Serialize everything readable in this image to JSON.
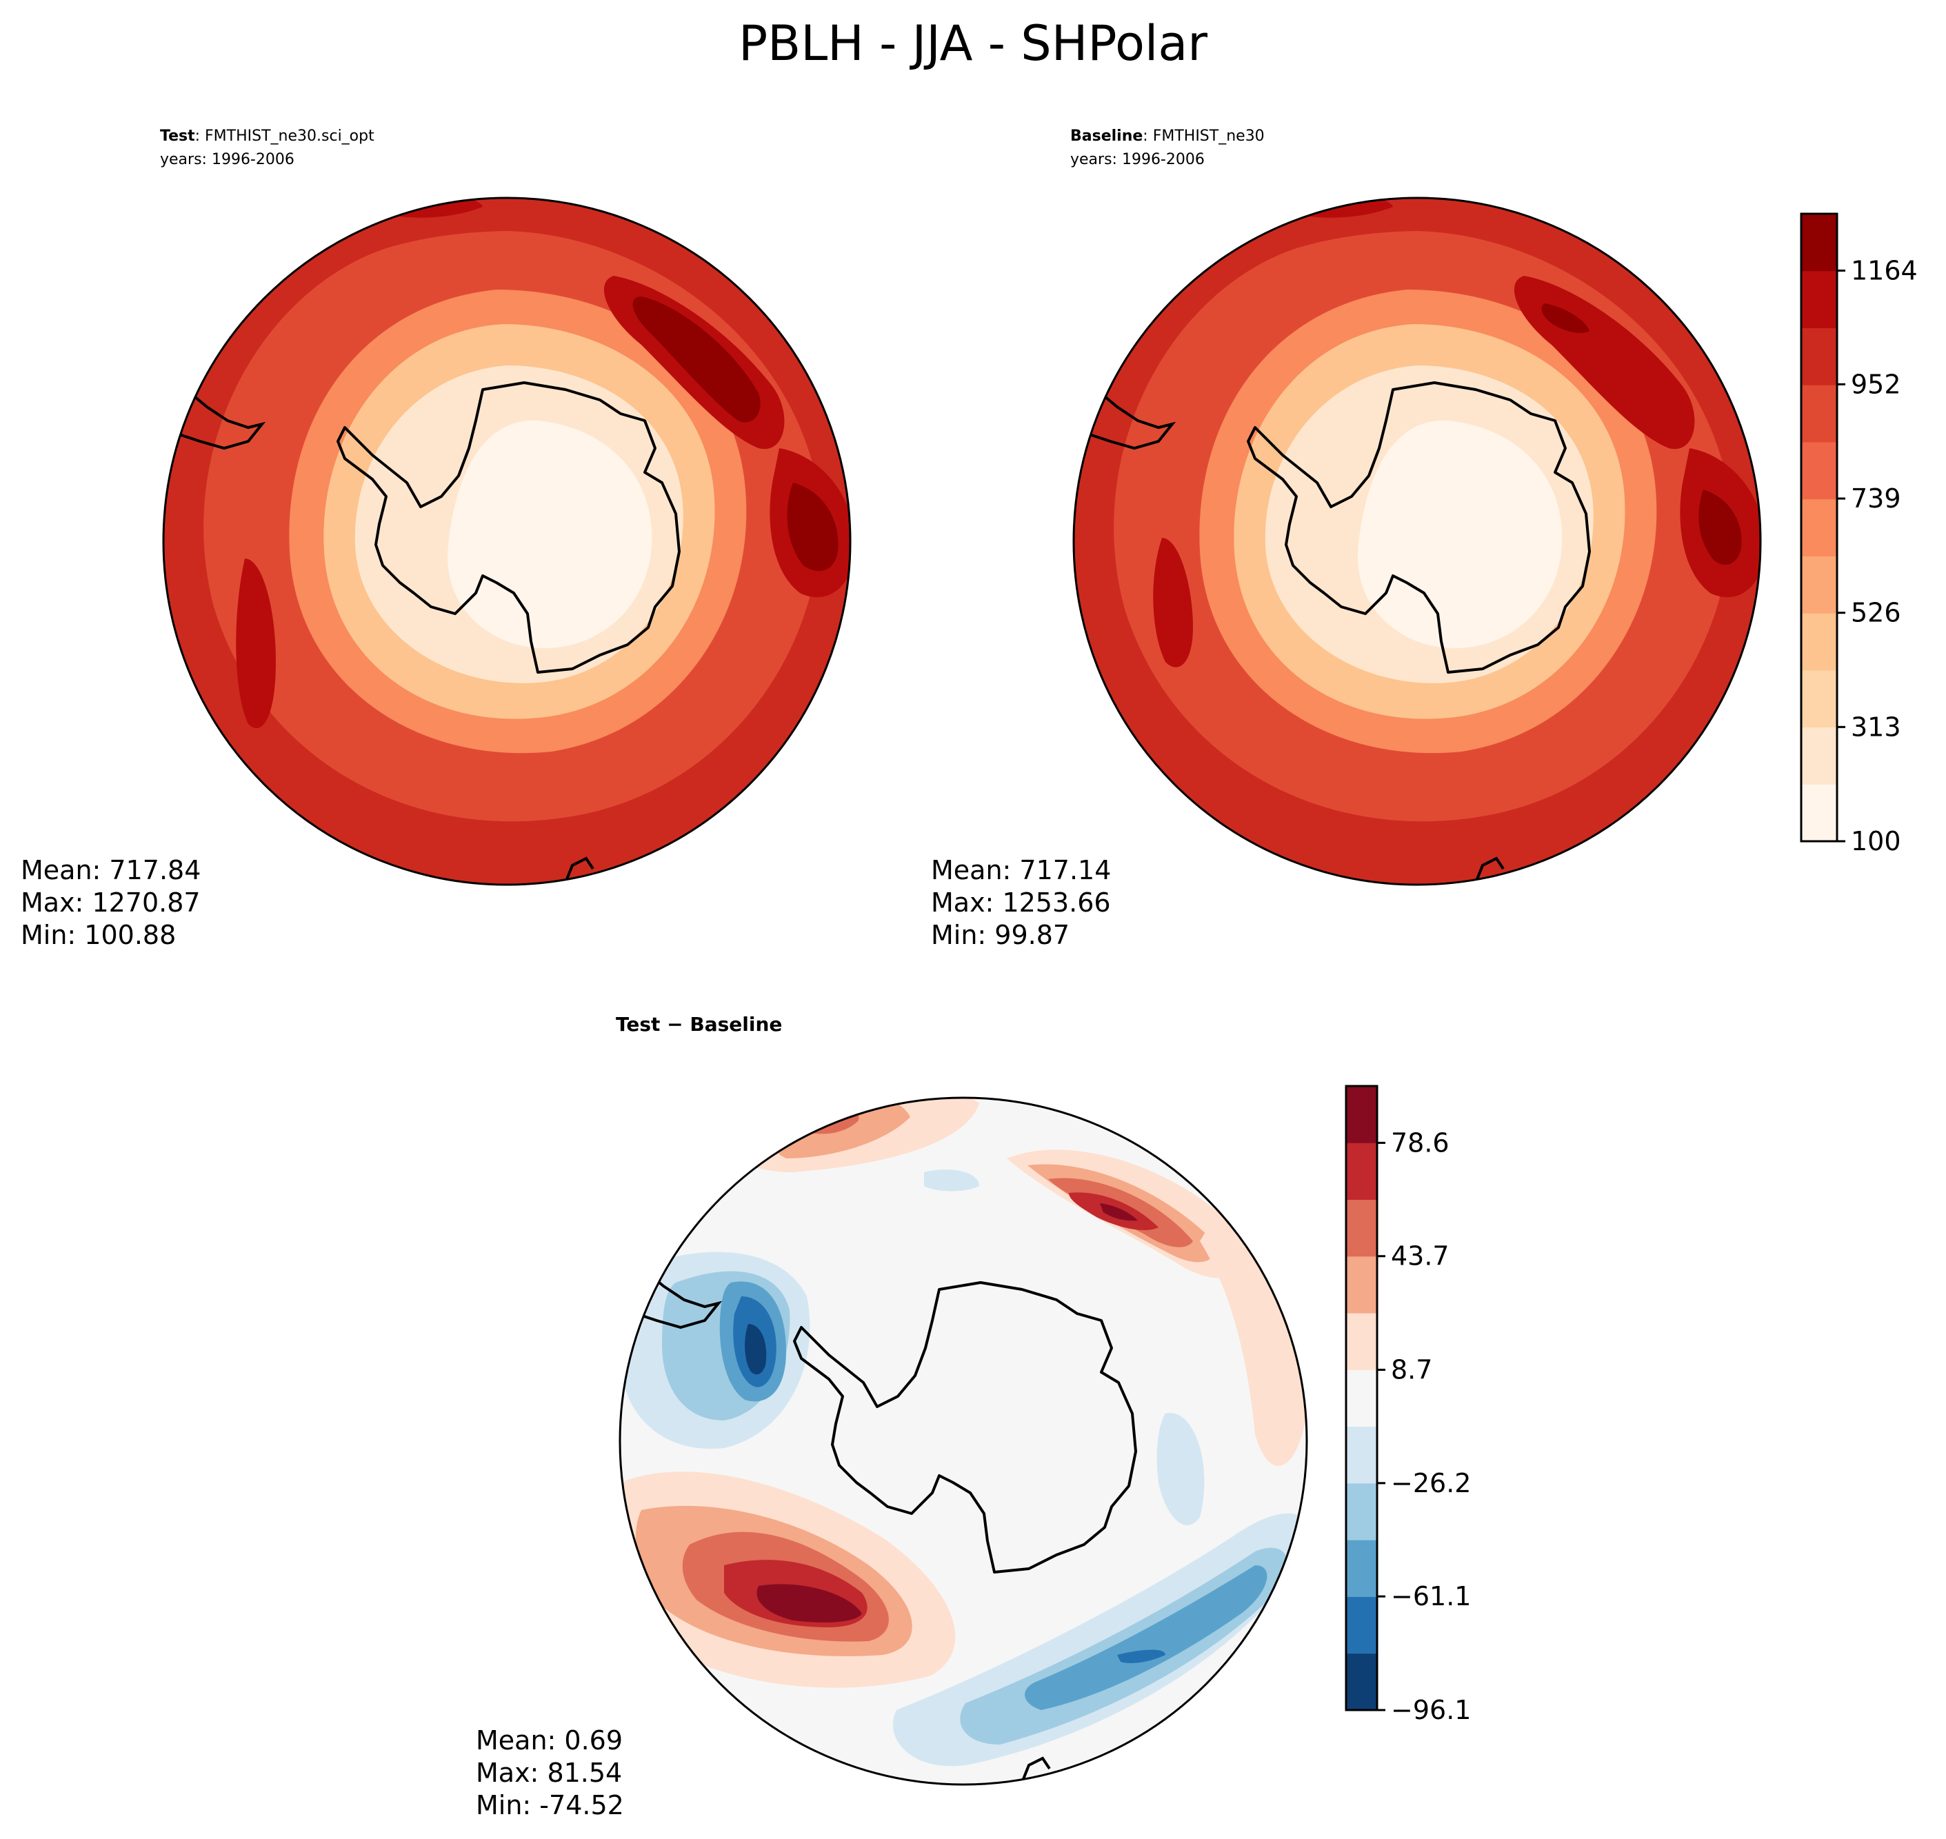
{
  "figure": {
    "title": "PBLH - JJA - SHPolar"
  },
  "chart_data": [
    {
      "type": "heatmap",
      "projection": "south-polar-stereographic",
      "panel": "test",
      "header_bold": "Test",
      "header_rest": ": FMTHIST_ne30.sci_opt",
      "years": "years: 1996-2006",
      "stats": {
        "mean": "Mean: 717.84",
        "max": "Max: 1270.87",
        "min": "Min: 100.88"
      },
      "field": "PBLH",
      "pattern": "low values (100-400) over Antarctic interior, increasing outward to 900-1270 over the Southern Ocean; maxima near 1270 in the upper-right sector"
    },
    {
      "type": "heatmap",
      "projection": "south-polar-stereographic",
      "panel": "baseline",
      "header_bold": "Baseline",
      "header_rest": ": FMTHIST_ne30",
      "years": "years: 1996-2006",
      "stats": {
        "mean": "Mean: 717.14",
        "max": "Max: 1253.66",
        "min": "Min: 99.87"
      },
      "field": "PBLH",
      "colorbar": {
        "colormap": "Reds",
        "ticks": [
          "1164",
          "952",
          "739",
          "526",
          "313",
          "100"
        ],
        "tick_values": [
          1164,
          952,
          739,
          526,
          313,
          100
        ],
        "range": [
          100,
          1270
        ],
        "levels": 11,
        "colors": [
          "#fff5eb",
          "#fee6ce",
          "#fdd5a8",
          "#fdc48f",
          "#fca876",
          "#f98b5c",
          "#ef6548",
          "#e04a33",
          "#cc2a1f",
          "#b80c0c",
          "#8f0000"
        ]
      }
    },
    {
      "type": "heatmap",
      "projection": "south-polar-stereographic",
      "panel": "difference",
      "header_bold": "Test − Baseline",
      "stats": {
        "mean": "Mean:  0.69",
        "max": "Max: 81.54",
        "min": "Min: -74.52"
      },
      "field": "PBLH difference",
      "colorbar": {
        "colormap": "RdBu_r",
        "ticks": [
          "78.6",
          "43.7",
          "8.7",
          "−26.2",
          "−61.1",
          "−96.1"
        ],
        "tick_values": [
          78.6,
          43.7,
          8.7,
          -26.2,
          -61.1,
          -96.1
        ],
        "range": [
          -96.1,
          96.1
        ],
        "levels": 11,
        "colors": [
          "#0d3f74",
          "#2471b2",
          "#5aa2cb",
          "#9fcce2",
          "#d4e6f1",
          "#f6f6f6",
          "#fde0d0",
          "#f4a989",
          "#df6c56",
          "#c1292e",
          "#870b20"
        ]
      }
    }
  ]
}
